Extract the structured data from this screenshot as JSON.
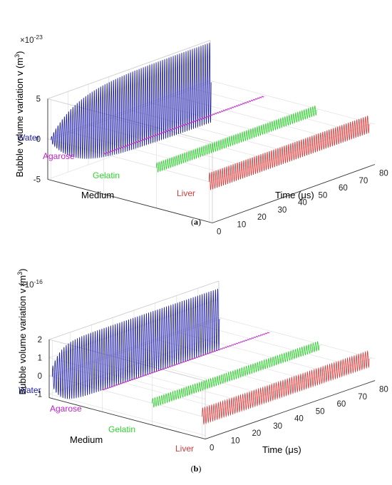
{
  "figures": [
    {
      "caption_label": "a",
      "chart_data": {
        "type": "line",
        "view": "3d-waterfall",
        "zlabel": "Bubble volume variation v (m",
        "zlabel_sup": "3",
        "zlabel_close": ")",
        "exponent_base": "×10",
        "exponent_power": "-23",
        "zticks": [
          "5",
          "0",
          "-5"
        ],
        "zlim": [
          -5,
          5
        ],
        "xlabel": "Time (μs)",
        "xticks": [
          "0",
          "10",
          "20",
          "30",
          "40",
          "50",
          "60",
          "70",
          "80"
        ],
        "xlim": [
          0,
          80
        ],
        "ylabel": "Medium",
        "grid": true,
        "series": [
          {
            "name": "Water",
            "color": "#1a1aa8",
            "amplitude": 5.0,
            "start_amplitude": 0.3,
            "rise": 0.15,
            "cycles": 75
          },
          {
            "name": "Agarose",
            "color": "#c020c8",
            "amplitude": 0.08,
            "start_amplitude": 0.08,
            "rise": 0.5,
            "cycles": 75
          },
          {
            "name": "Gelatin",
            "color": "#30d030",
            "amplitude": 0.6,
            "start_amplitude": 0.6,
            "rise": 0.5,
            "cycles": 75
          },
          {
            "name": "Liver",
            "color": "#d83a3a",
            "amplitude": 1.1,
            "start_amplitude": 1.1,
            "rise": 0.5,
            "cycles": 75
          }
        ]
      }
    },
    {
      "caption_label": "b",
      "chart_data": {
        "type": "line",
        "view": "3d-waterfall",
        "zlabel": "Bubble volume variation v (m",
        "zlabel_sup": "3",
        "zlabel_close": ")",
        "exponent_base": "×10",
        "exponent_power": "-16",
        "zticks": [
          "2",
          "1",
          "0",
          "-1"
        ],
        "zlim": [
          -1.2,
          2
        ],
        "xlabel": "Time (μs)",
        "xticks": [
          "0",
          "10",
          "20",
          "30",
          "40",
          "50",
          "60",
          "70",
          "80"
        ],
        "xlim": [
          0,
          80
        ],
        "ylabel": "Medium",
        "grid": true,
        "series": [
          {
            "name": "Water",
            "color": "#1a1aa8",
            "amplitude": 1.7,
            "start_amplitude": 0.5,
            "rise": 0.05,
            "cycles": 75
          },
          {
            "name": "Agarose",
            "color": "#c020c8",
            "amplitude": 0.03,
            "start_amplitude": 0.03,
            "rise": 0.5,
            "cycles": 75
          },
          {
            "name": "Gelatin",
            "color": "#30d030",
            "amplitude": 0.25,
            "start_amplitude": 0.25,
            "rise": 0.5,
            "cycles": 75
          },
          {
            "name": "Liver",
            "color": "#d83a3a",
            "amplitude": 0.45,
            "start_amplitude": 0.45,
            "rise": 0.5,
            "cycles": 75
          }
        ]
      }
    }
  ]
}
